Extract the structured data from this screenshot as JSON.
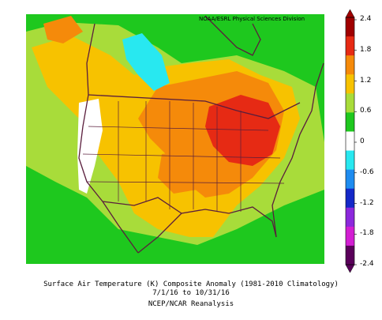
{
  "map": {
    "credit": "NOAA/ESRL Physical Sciences Division",
    "caption_line1": "Surface Air Temperature (K) Composite Anomaly (1981-2010 Climatology)",
    "caption_line2": "7/1/16  to 10/31/16",
    "caption_line3": "NCEP/NCAR Reanalysis",
    "field": "Surface Air Temperature anomaly",
    "units": "K"
  },
  "colorbar": {
    "ticks": [
      "2.4",
      "1.8",
      "1.2",
      "0.6",
      "0",
      "-0.6",
      "-1.2",
      "-1.8",
      "-2.4"
    ],
    "colors": [
      "#a00000",
      "#e62a14",
      "#f58a0a",
      "#f7c200",
      "#a8dc3a",
      "#1ec81e",
      "#ffffff",
      "#28e8f0",
      "#1e8cf0",
      "#1428c8",
      "#8c28dc",
      "#d21ed2",
      "#5a005a"
    ]
  }
}
